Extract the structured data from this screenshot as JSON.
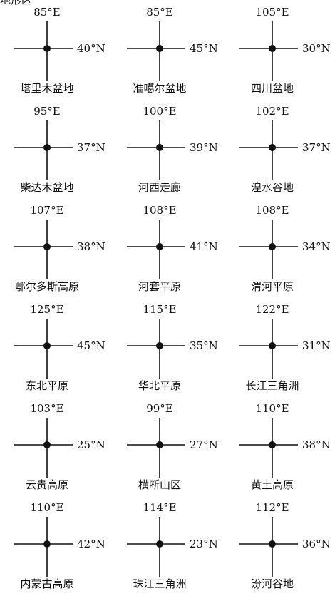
{
  "header_fragment": "地形区",
  "regions": [
    {
      "longitude": "85°E",
      "latitude": "40°N",
      "name": "塔里木盆地"
    },
    {
      "longitude": "85°E",
      "latitude": "45°N",
      "name": "准噶尔盆地"
    },
    {
      "longitude": "105°E",
      "latitude": "30°N",
      "name": "四川盆地"
    },
    {
      "longitude": "95°E",
      "latitude": "37°N",
      "name": "柴达木盆地"
    },
    {
      "longitude": "100°E",
      "latitude": "39°N",
      "name": "河西走廊"
    },
    {
      "longitude": "102°E",
      "latitude": "37°N",
      "name": "湟水谷地"
    },
    {
      "longitude": "107°E",
      "latitude": "38°N",
      "name": "鄂尔多斯高原"
    },
    {
      "longitude": "108°E",
      "latitude": "41°N",
      "name": "河套平原"
    },
    {
      "longitude": "108°E",
      "latitude": "34°N",
      "name": "渭河平原"
    },
    {
      "longitude": "125°E",
      "latitude": "45°N",
      "name": "东北平原"
    },
    {
      "longitude": "115°E",
      "latitude": "35°N",
      "name": "华北平原"
    },
    {
      "longitude": "122°E",
      "latitude": "31°N",
      "name": "长江三角洲"
    },
    {
      "longitude": "103°E",
      "latitude": "25°N",
      "name": "云贵高原"
    },
    {
      "longitude": "99°E",
      "latitude": "27°N",
      "name": "横断山区"
    },
    {
      "longitude": "110°E",
      "latitude": "38°N",
      "name": "黄土高原"
    },
    {
      "longitude": "110°E",
      "latitude": "42°N",
      "name": "内蒙古高原"
    },
    {
      "longitude": "114°E",
      "latitude": "23°N",
      "name": "珠江三角洲"
    },
    {
      "longitude": "112°E",
      "latitude": "36°N",
      "name": "汾河谷地"
    }
  ]
}
